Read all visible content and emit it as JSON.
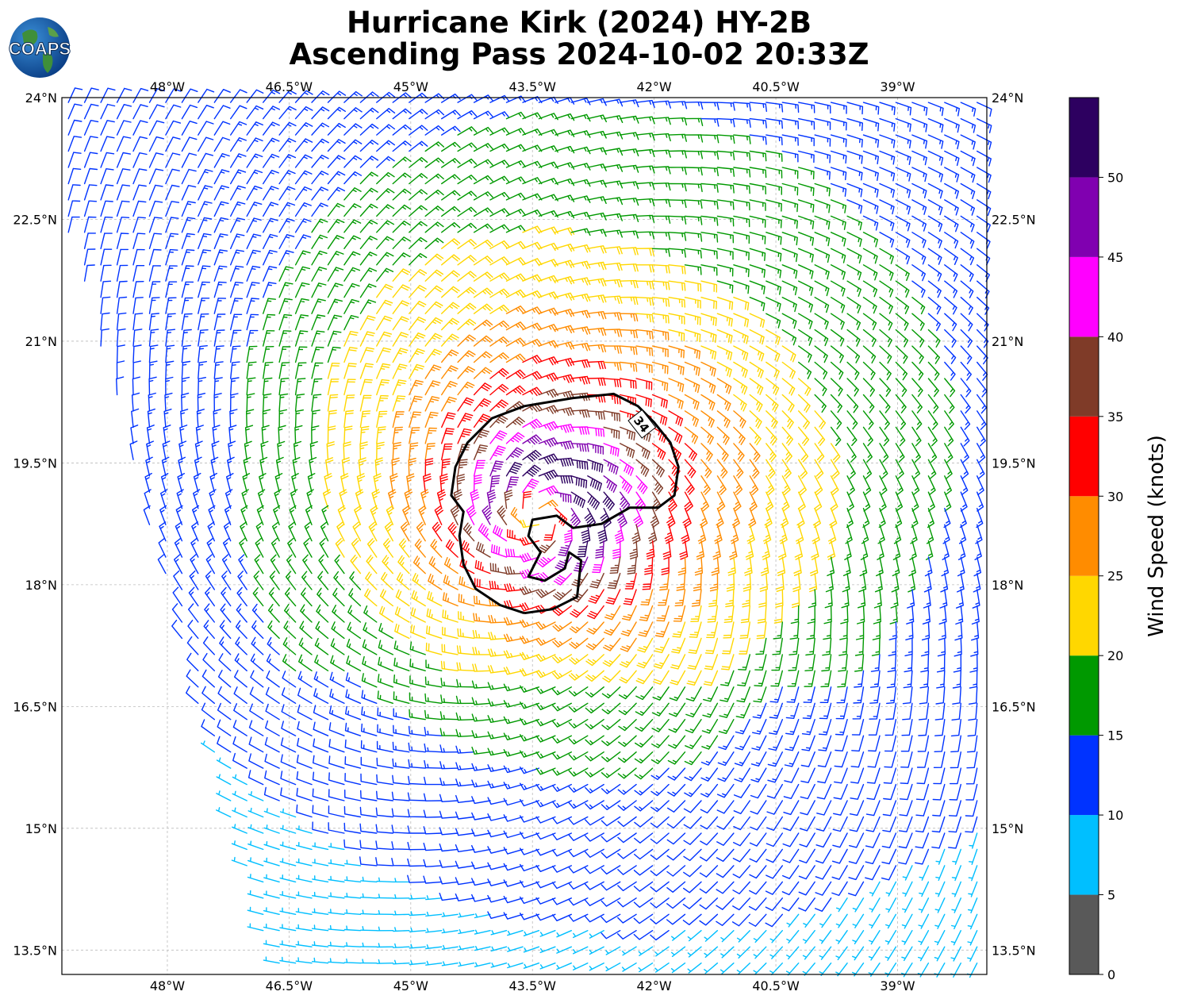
{
  "header": {
    "title_line_1": "Hurricane Kirk (2024) HY-2B",
    "title_line_2": "Ascending Pass 2024-10-02 20:33Z",
    "logo_text": "COAPS",
    "logo_icon": "globe-icon"
  },
  "map": {
    "lon_range": [
      -49.3,
      -37.9
    ],
    "lat_range": [
      13.2,
      24.0
    ],
    "lon_ticks": [
      {
        "value": -48.0,
        "label": "48°W"
      },
      {
        "value": -46.5,
        "label": "46.5°W"
      },
      {
        "value": -45.0,
        "label": "45°W"
      },
      {
        "value": -43.5,
        "label": "43.5°W"
      },
      {
        "value": -42.0,
        "label": "42°W"
      },
      {
        "value": -40.5,
        "label": "40.5°W"
      },
      {
        "value": -39.0,
        "label": "39°W"
      }
    ],
    "lat_ticks": [
      {
        "value": 24.0,
        "label": "24°N"
      },
      {
        "value": 22.5,
        "label": "22.5°N"
      },
      {
        "value": 21.0,
        "label": "21°N"
      },
      {
        "value": 19.5,
        "label": "19.5°N"
      },
      {
        "value": 18.0,
        "label": "18°N"
      },
      {
        "value": 16.5,
        "label": "16.5°N"
      },
      {
        "value": 15.0,
        "label": "15°N"
      },
      {
        "value": 13.5,
        "label": "13.5°N"
      }
    ],
    "grid": true,
    "storm_center": {
      "lon": -43.4,
      "lat": 18.85
    },
    "contour": {
      "label": "34",
      "level_knots": 34,
      "points": [
        [
          -43.6,
          17.65
        ],
        [
          -43.9,
          17.75
        ],
        [
          -44.2,
          17.95
        ],
        [
          -44.35,
          18.25
        ],
        [
          -44.4,
          18.6
        ],
        [
          -44.35,
          18.9
        ],
        [
          -44.5,
          19.1
        ],
        [
          -44.45,
          19.45
        ],
        [
          -44.3,
          19.75
        ],
        [
          -44.0,
          20.05
        ],
        [
          -43.6,
          20.2
        ],
        [
          -43.0,
          20.3
        ],
        [
          -42.5,
          20.35
        ],
        [
          -42.2,
          20.2
        ],
        [
          -42.0,
          20.0
        ],
        [
          -41.8,
          19.75
        ],
        [
          -41.7,
          19.45
        ],
        [
          -41.75,
          19.1
        ],
        [
          -41.95,
          18.95
        ],
        [
          -42.3,
          18.95
        ],
        [
          -42.65,
          18.75
        ],
        [
          -43.0,
          18.7
        ],
        [
          -43.2,
          18.85
        ],
        [
          -43.5,
          18.8
        ],
        [
          -43.55,
          18.6
        ],
        [
          -43.4,
          18.4
        ],
        [
          -43.55,
          18.1
        ],
        [
          -43.35,
          18.05
        ],
        [
          -43.1,
          18.2
        ],
        [
          -43.05,
          18.4
        ],
        [
          -42.9,
          18.3
        ],
        [
          -42.95,
          17.85
        ],
        [
          -43.25,
          17.7
        ],
        [
          -43.6,
          17.65
        ]
      ]
    },
    "swath_polygon": [
      [
        -49.3,
        24.0
      ],
      [
        -37.9,
        24.0
      ],
      [
        -37.9,
        13.2
      ],
      [
        -46.7,
        13.2
      ],
      [
        -49.3,
        22.6
      ]
    ],
    "barb_spacing_deg": 0.2
  },
  "colorbar": {
    "label": "Wind Speed (knots)",
    "range": [
      0,
      55
    ],
    "bins": [
      {
        "min": 0,
        "max": 5,
        "color": "#595959"
      },
      {
        "min": 5,
        "max": 10,
        "color": "#00bfff"
      },
      {
        "min": 10,
        "max": 15,
        "color": "#0033ff"
      },
      {
        "min": 15,
        "max": 20,
        "color": "#009900"
      },
      {
        "min": 20,
        "max": 25,
        "color": "#ffd700"
      },
      {
        "min": 25,
        "max": 30,
        "color": "#ff8c00"
      },
      {
        "min": 30,
        "max": 35,
        "color": "#ff0000"
      },
      {
        "min": 35,
        "max": 40,
        "color": "#7f3b28"
      },
      {
        "min": 40,
        "max": 45,
        "color": "#ff00ff"
      },
      {
        "min": 45,
        "max": 50,
        "color": "#8000b0"
      },
      {
        "min": 50,
        "max": 55,
        "color": "#2d0060"
      }
    ],
    "ticks": [
      "0",
      "5",
      "10",
      "15",
      "20",
      "25",
      "30",
      "35",
      "40",
      "45",
      "50"
    ]
  }
}
